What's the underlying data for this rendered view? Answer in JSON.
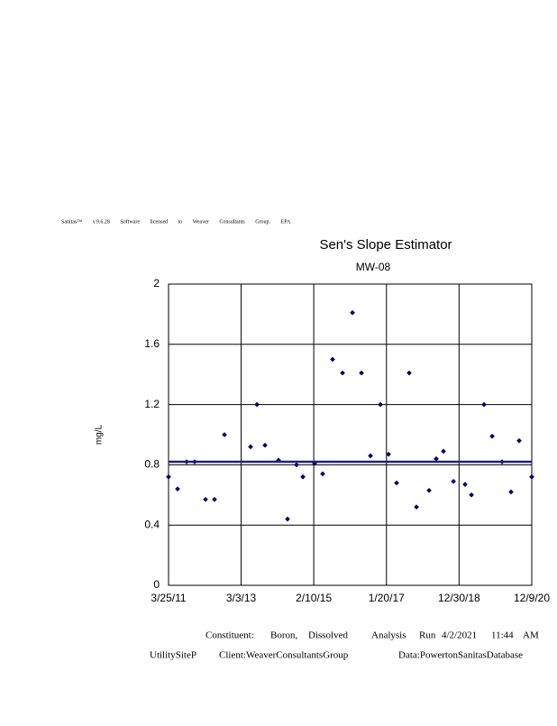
{
  "header": "Sanitas™ v.9.6.28 Software licensed to Weaver Consultants Group. EPA",
  "chart_data": {
    "type": "scatter",
    "title": "Sen's Slope Estimator",
    "subtitle": "MW-08",
    "y_label": "mg/L",
    "x": [
      "3/25/11",
      "6/21/11",
      "9/17/11",
      "12/5/11",
      "3/20/12",
      "6/16/12",
      "9/21/12",
      "6/3/13",
      "8/4/13",
      "10/22/13",
      "3/3/14",
      "5/30/14",
      "8/26/14",
      "10/27/14",
      "2/18/15",
      "5/8/15",
      "8/13/15",
      "11/18/15",
      "2/23/16",
      "5/21/16",
      "8/17/16",
      "11/22/16",
      "2/9/17",
      "4/29/17",
      "8/30/17",
      "11/9/17",
      "3/12/18",
      "5/21/18",
      "7/31/18",
      "11/5/18",
      "2/27/19",
      "4/30/19",
      "8/31/19",
      "11/18/19",
      "2/23/20",
      "5/21/20",
      "8/8/20",
      "12/9/20"
    ],
    "values": [
      0.72,
      0.64,
      0.82,
      0.82,
      0.57,
      0.57,
      1.0,
      0.92,
      1.2,
      0.93,
      0.83,
      0.44,
      0.8,
      0.72,
      0.81,
      0.74,
      1.5,
      1.41,
      1.81,
      1.41,
      0.86,
      1.2,
      0.87,
      0.68,
      1.41,
      0.52,
      0.63,
      0.84,
      0.89,
      0.69,
      0.67,
      0.6,
      1.2,
      0.99,
      0.82,
      0.62,
      0.96,
      0.72
    ],
    "color": "#000066",
    "trend": {
      "x": [
        "3/25/11",
        "12/9/20"
      ],
      "values": [
        0.82,
        0.82
      ],
      "color": "#1a237e"
    },
    "xlim": [
      "3/25/11",
      "12/9/20"
    ],
    "xticks": [
      "3/25/11",
      "3/3/13",
      "2/10/15",
      "1/20/17",
      "12/30/18",
      "12/9/20"
    ],
    "ylim": [
      0,
      2
    ],
    "yticks": [
      0,
      0.4,
      0.8,
      1.2,
      1.6,
      2
    ],
    "grid": true
  },
  "footer": {
    "line1": [
      "Constituent:",
      "Boron,",
      "Dissolved",
      "Analysis",
      "Run",
      "4/2/2021",
      "11:44",
      "AM"
    ],
    "line2": [
      "UtilitySiteP",
      "Client:WeaverConsultantsGroup",
      "Data:PowertonSanitasDatabase"
    ]
  }
}
